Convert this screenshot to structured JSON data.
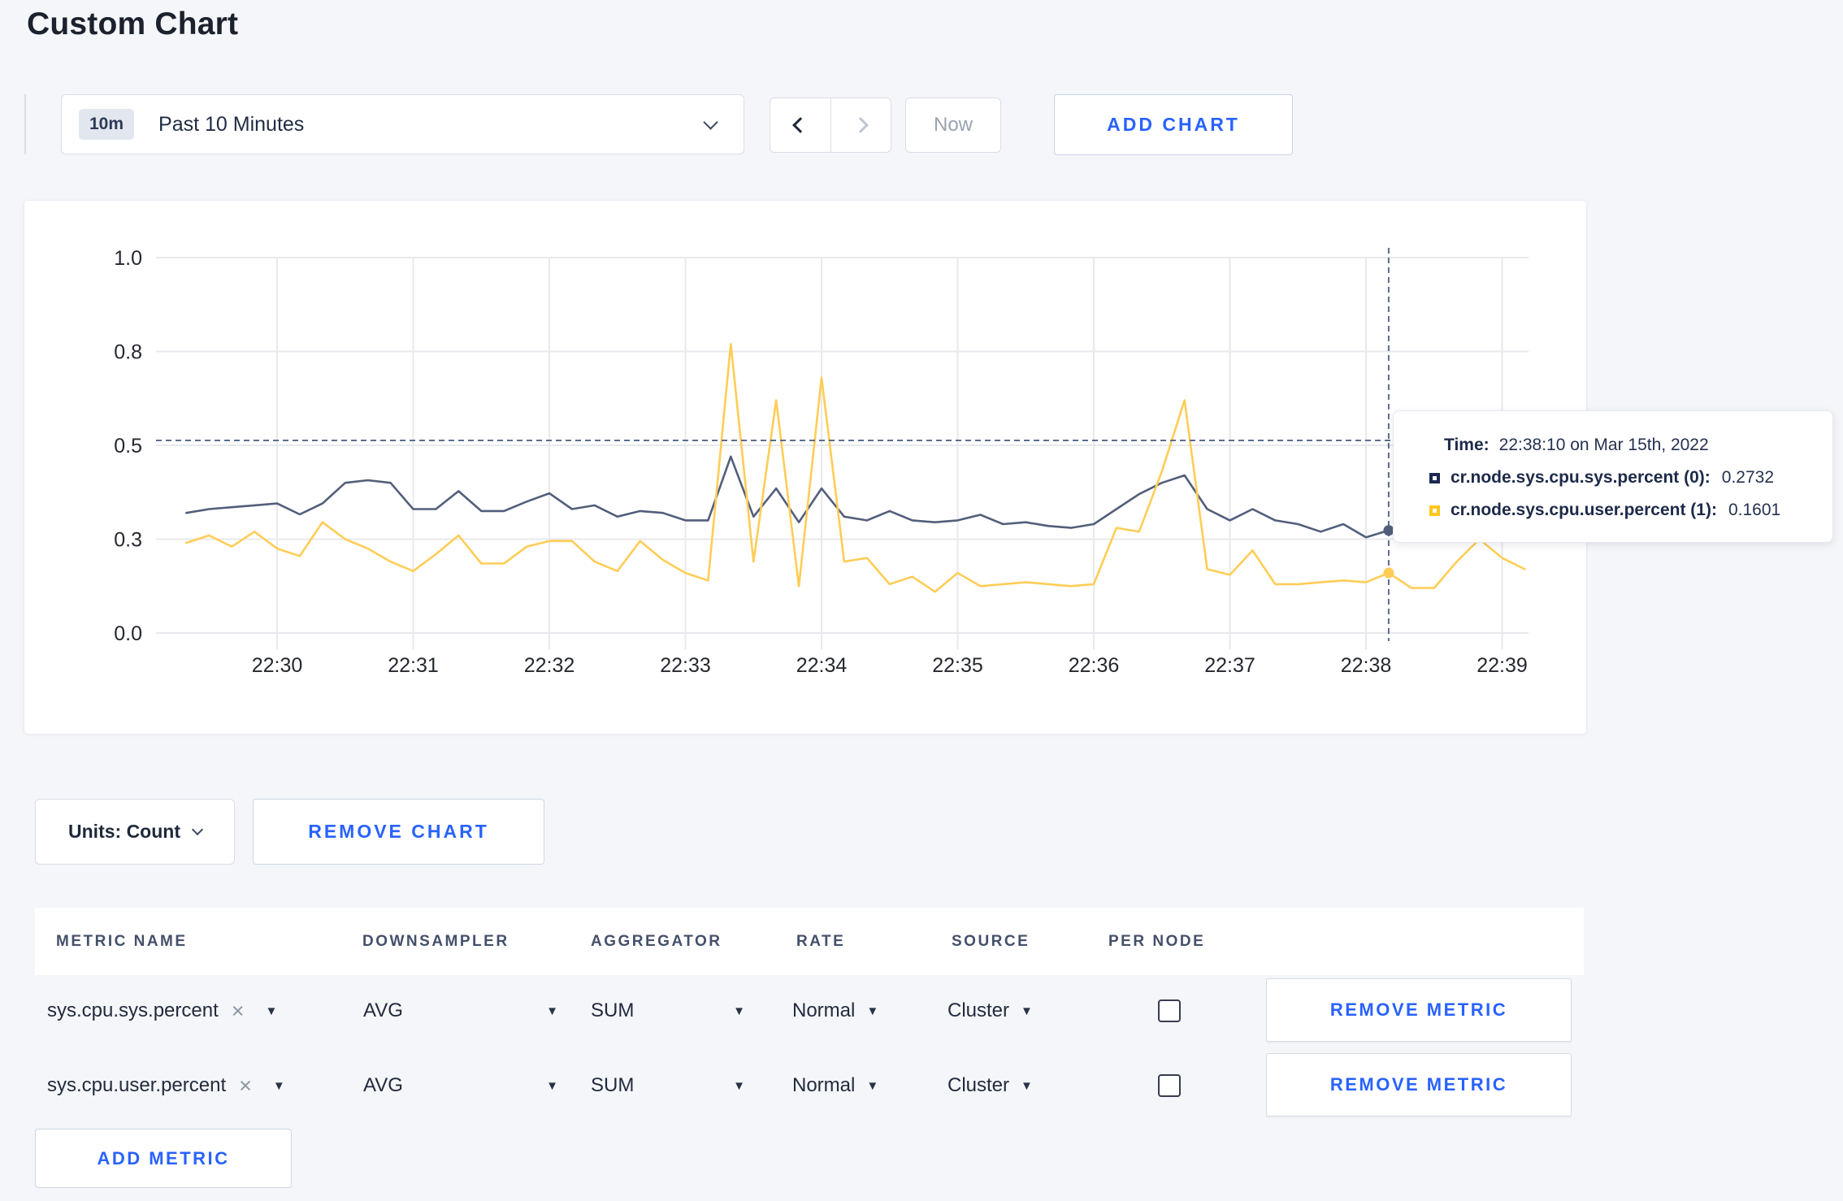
{
  "page": {
    "title": "Custom Chart"
  },
  "toolbar": {
    "time_badge": "10m",
    "time_label": "Past 10 Minutes",
    "now_label": "Now",
    "add_chart_label": "ADD CHART"
  },
  "chart_data": {
    "type": "line",
    "title": "",
    "ylim": [
      0,
      1
    ],
    "y_tick_labels": [
      "1.0",
      "0.8",
      "0.5",
      "0.3",
      "0.0"
    ],
    "y_tick_values": [
      1.0,
      0.75,
      0.5,
      0.25,
      0.0
    ],
    "x_ticks": [
      "22:30",
      "22:31",
      "22:32",
      "22:33",
      "22:34",
      "22:35",
      "22:36",
      "22:37",
      "22:38",
      "22:39"
    ],
    "x_step_seconds": 10,
    "first_point_offset_seconds": -40,
    "grid": true,
    "grid_color": "#e8e9ec",
    "axis_text_color": "#25282e",
    "legend": "none",
    "series": [
      {
        "name": "cr.node.sys.cpu.sys.percent",
        "color": "#525f7b",
        "values": [
          0.32,
          0.33,
          0.335,
          0.34,
          0.345,
          0.316,
          0.345,
          0.4,
          0.407,
          0.4,
          0.33,
          0.33,
          0.378,
          0.325,
          0.325,
          0.35,
          0.372,
          0.33,
          0.34,
          0.31,
          0.325,
          0.32,
          0.3,
          0.3,
          0.47,
          0.31,
          0.385,
          0.295,
          0.385,
          0.31,
          0.3,
          0.325,
          0.3,
          0.295,
          0.3,
          0.315,
          0.29,
          0.295,
          0.285,
          0.28,
          0.29,
          0.33,
          0.37,
          0.4,
          0.42,
          0.33,
          0.3,
          0.33,
          0.3,
          0.29,
          0.27,
          0.29,
          0.255,
          0.2732,
          0.26,
          0.25,
          0.27,
          0.29,
          0.3,
          0.31
        ]
      },
      {
        "name": "cr.node.sys.cpu.user.percent",
        "color": "#ffcd56",
        "values": [
          0.24,
          0.26,
          0.23,
          0.27,
          0.225,
          0.205,
          0.295,
          0.25,
          0.225,
          0.19,
          0.165,
          0.21,
          0.26,
          0.185,
          0.185,
          0.23,
          0.245,
          0.245,
          0.19,
          0.165,
          0.245,
          0.195,
          0.16,
          0.14,
          0.77,
          0.19,
          0.62,
          0.125,
          0.68,
          0.19,
          0.2,
          0.13,
          0.15,
          0.11,
          0.16,
          0.125,
          0.13,
          0.135,
          0.13,
          0.125,
          0.13,
          0.28,
          0.27,
          0.43,
          0.62,
          0.17,
          0.155,
          0.22,
          0.13,
          0.13,
          0.135,
          0.14,
          0.135,
          0.1601,
          0.12,
          0.12,
          0.19,
          0.25,
          0.2,
          0.17
        ]
      }
    ],
    "hover": {
      "time": "22:38:10",
      "point_index": 53,
      "hline_value": 0.513,
      "dot_values": [
        0.2732,
        0.1601
      ],
      "crosshair_color": "#5d6e8c"
    }
  },
  "tooltip": {
    "time_label": "Time:",
    "time_value": "22:38:10 on Mar 15th, 2022",
    "series": [
      {
        "label": "cr.node.sys.cpu.sys.percent (0):",
        "value": "0.2732",
        "swatch_color": "#1b2950"
      },
      {
        "label": "cr.node.sys.cpu.user.percent (1):",
        "value": "0.1601",
        "swatch_color": "#ffc61e"
      }
    ]
  },
  "chart_footer": {
    "units_label": "Units: Count",
    "remove_chart_label": "REMOVE CHART"
  },
  "metrics_table": {
    "headers": [
      "METRIC NAME",
      "DOWNSAMPLER",
      "AGGREGATOR",
      "RATE",
      "SOURCE",
      "PER NODE"
    ],
    "clear_icon": "×",
    "dropdown_icon": "▼",
    "rows": [
      {
        "metric": "sys.cpu.sys.percent",
        "downsampler": "AVG",
        "aggregator": "SUM",
        "rate": "Normal",
        "source": "Cluster",
        "per_node_checked": false,
        "remove_label": "REMOVE METRIC"
      },
      {
        "metric": "sys.cpu.user.percent",
        "downsampler": "AVG",
        "aggregator": "SUM",
        "rate": "Normal",
        "source": "Cluster",
        "per_node_checked": false,
        "remove_label": "REMOVE METRIC"
      }
    ],
    "add_metric_label": "ADD METRIC"
  }
}
